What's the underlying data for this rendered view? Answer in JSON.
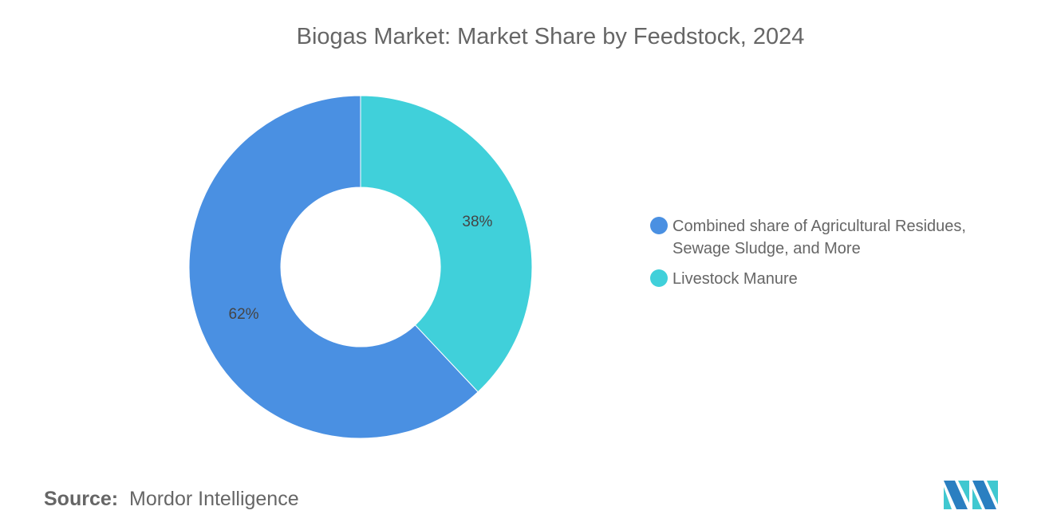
{
  "title": "Biogas Market: Market Share by Feedstock, 2024",
  "chart_data": {
    "type": "pie",
    "variant": "donut",
    "title": "Biogas Market: Market Share by Feedstock, 2024",
    "slices": [
      {
        "name": "Livestock Manure",
        "value": 38,
        "label": "38%",
        "color": "#40D0DA"
      },
      {
        "name": "Combined share of Agricultural Residues, Sewage Sludge, and More",
        "value": 62,
        "label": "62%",
        "color": "#4A90E2"
      }
    ],
    "legend_position": "right"
  },
  "legend": [
    {
      "label": "Combined share of Agricultural Residues, Sewage Sludge, and More",
      "color": "#4A90E2"
    },
    {
      "label": "Livestock Manure",
      "color": "#40D0DA"
    }
  ],
  "source": {
    "prefix": "Source:",
    "text": "Mordor Intelligence"
  },
  "logo": {
    "alt": "Mordor Intelligence logo",
    "colors": [
      "#2A7FC1",
      "#40C8D0"
    ]
  }
}
